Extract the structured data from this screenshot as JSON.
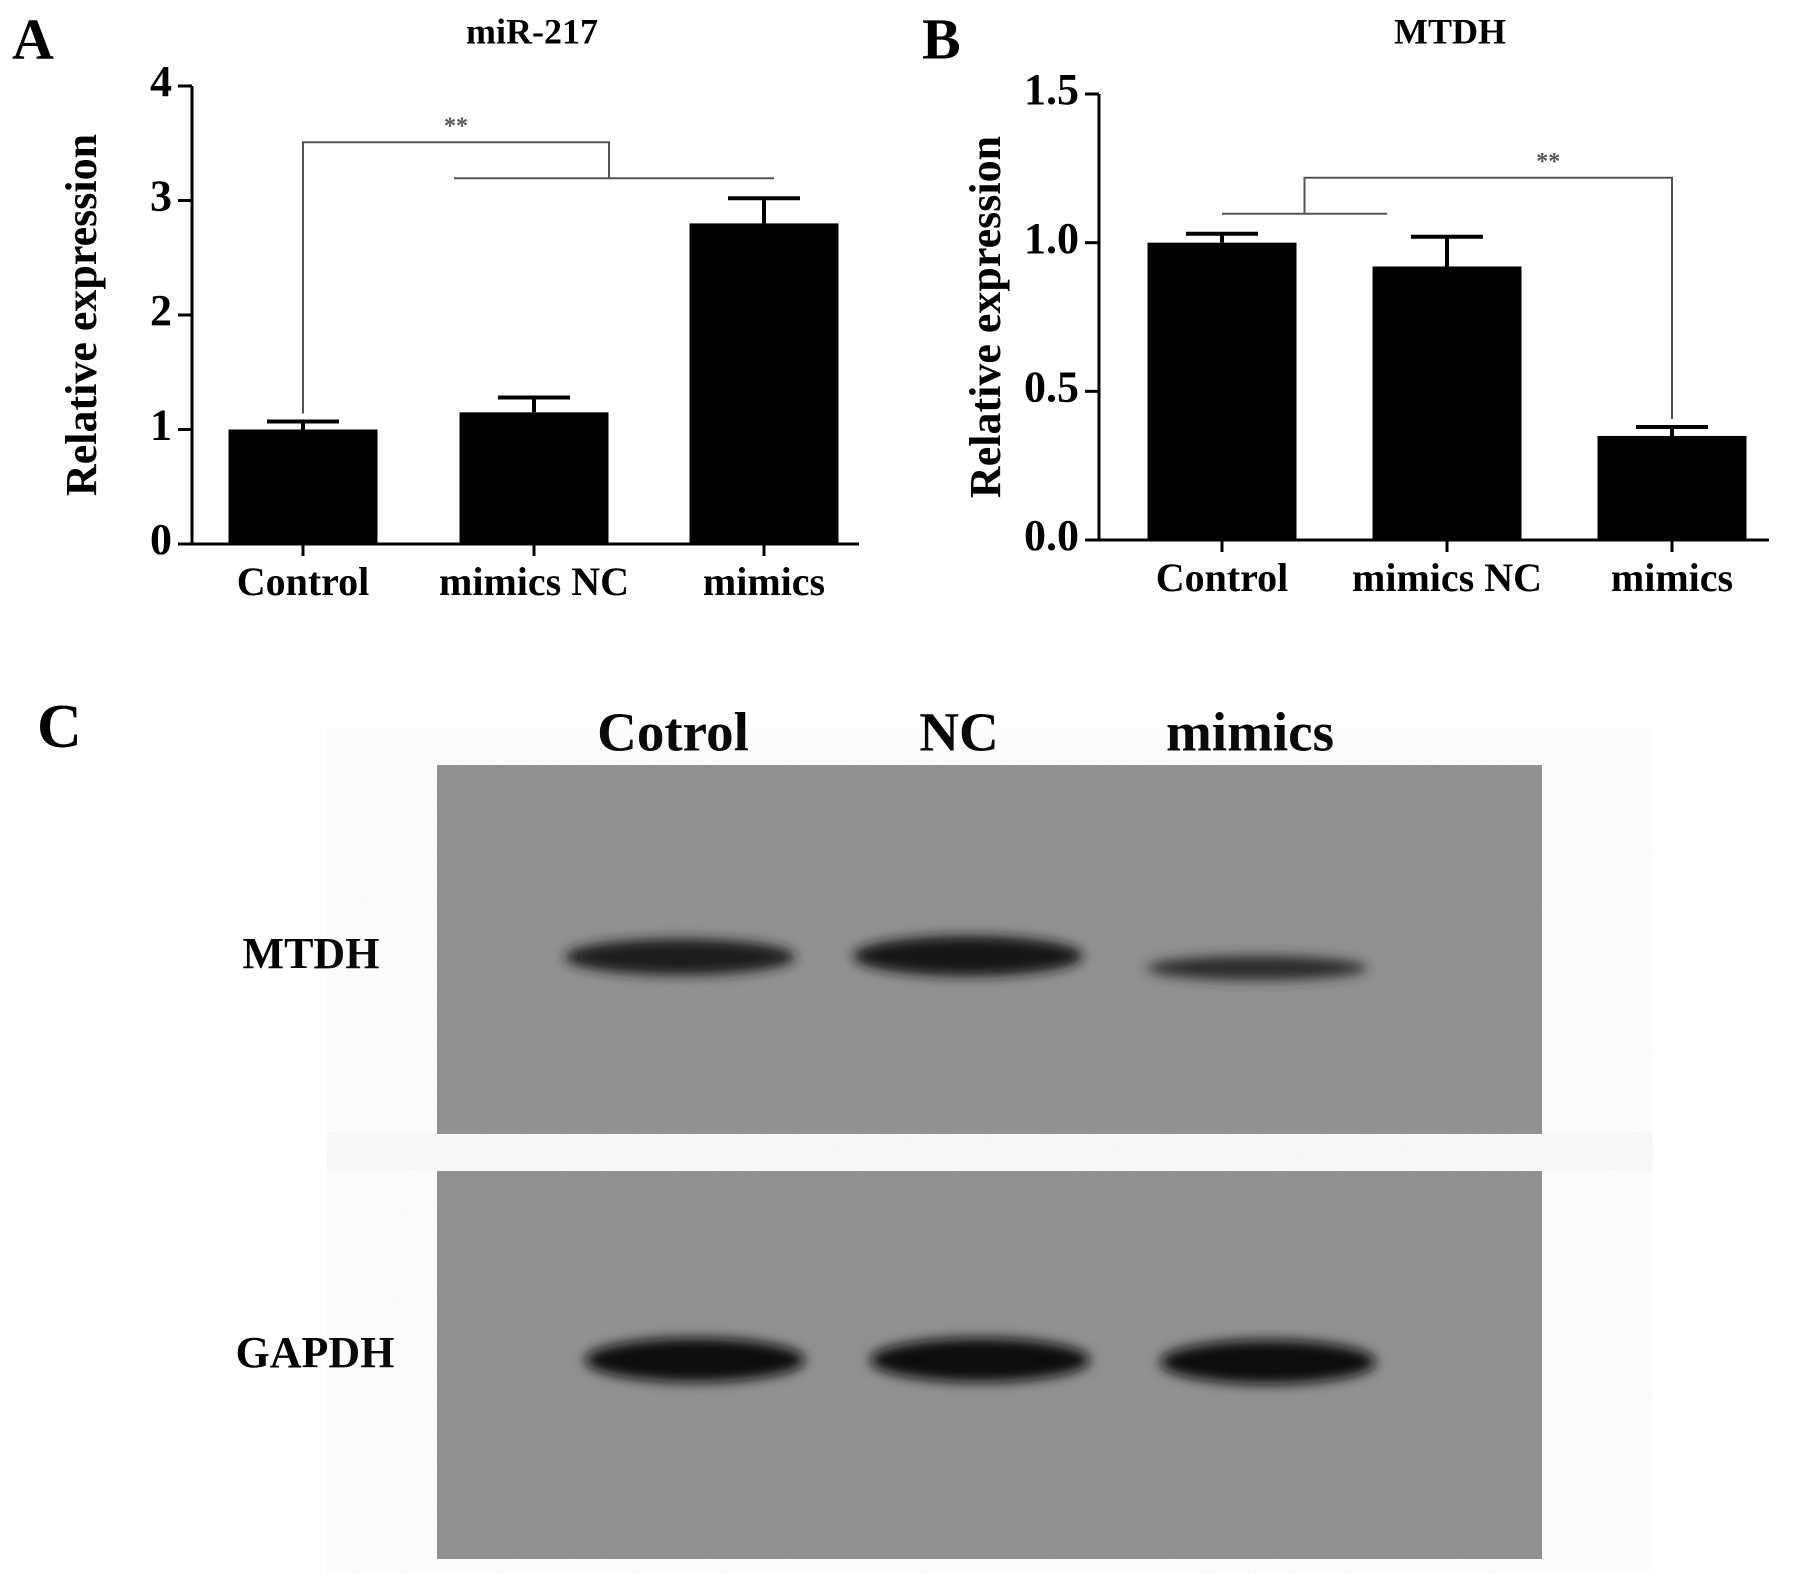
{
  "chart_data": [
    {
      "type": "bar",
      "panel": "A",
      "title": "miR-217",
      "y_label": "Relative expression",
      "categories": [
        "Control",
        "mimics NC",
        "mimics"
      ],
      "values": [
        1.0,
        1.15,
        2.8
      ],
      "errors": [
        0.07,
        0.13,
        0.22
      ],
      "color": "#000000",
      "ylim": [
        0,
        4
      ],
      "yticks": [
        0,
        1,
        2,
        3,
        4
      ],
      "annotation": "**"
    },
    {
      "type": "bar",
      "panel": "B",
      "title": "MTDH",
      "y_label": "Relative expression",
      "categories": [
        "Control",
        "mimics NC",
        "mimics"
      ],
      "values": [
        1.0,
        0.92,
        0.35
      ],
      "errors": [
        0.03,
        0.1,
        0.03
      ],
      "color": "#000000",
      "ylim": [
        0,
        1.5
      ],
      "yticks": [
        {
          "value": 0,
          "label": "0.0"
        },
        0.5,
        {
          "value": 1,
          "label": "1.0"
        },
        1.5
      ],
      "annotation": "**"
    }
  ],
  "blot": {
    "panel": "C",
    "lanes": [
      "Cotrol",
      "NC",
      "mimics"
    ],
    "rows": [
      "MTDH",
      "GAPDH"
    ]
  }
}
